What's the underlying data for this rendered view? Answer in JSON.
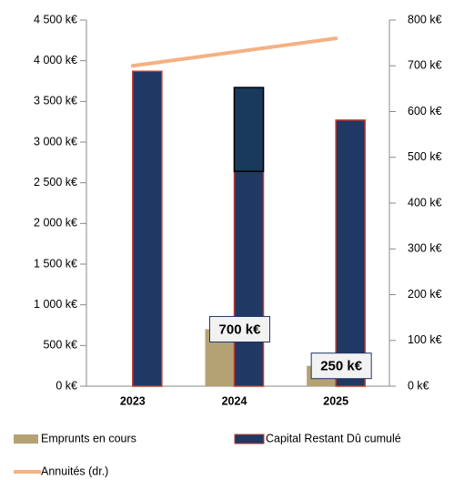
{
  "chart_data": {
    "type": "bar",
    "categories": [
      "2023",
      "2024",
      "2025"
    ],
    "series": [
      {
        "name": "Emprunts en cours",
        "color": "#b5a274",
        "values": [
          0,
          700,
          250
        ],
        "value_labels": [
          null,
          "700 k€",
          "250 k€"
        ]
      },
      {
        "name": "Capital Restant Dû cumulé",
        "color": "#1f3864",
        "border": "#c0392b",
        "values": [
          3870,
          3670,
          3270
        ]
      },
      {
        "name": "Annuités (dr.)",
        "color": "#f4b183",
        "type": "line",
        "axis": "y2",
        "values": [
          700,
          730,
          760
        ]
      }
    ],
    "highlight_range": [
      2640,
      3670
    ],
    "ylim": [
      0,
      4500
    ],
    "yticks": [
      {
        "value": 0,
        "label": "0 k€"
      },
      {
        "value": 500,
        "label": "500 k€"
      },
      {
        "value": 1000,
        "label": "1 000 k€"
      },
      {
        "value": 1500,
        "label": "1 500 k€"
      },
      {
        "value": 2000,
        "label": "2 000 k€"
      },
      {
        "value": 2500,
        "label": "2 500 k€"
      },
      {
        "value": 3000,
        "label": "3 000 k€"
      },
      {
        "value": 3500,
        "label": "3 500 k€"
      },
      {
        "value": 4000,
        "label": "4 000 k€"
      },
      {
        "value": 4500,
        "label": "4 500 k€"
      }
    ],
    "y2lim": [
      0,
      800
    ],
    "y2ticks": [
      {
        "value": 0,
        "label": "0 k€"
      },
      {
        "value": 100,
        "label": "100 k€"
      },
      {
        "value": 200,
        "label": "200 k€"
      },
      {
        "value": 300,
        "label": "300 k€"
      },
      {
        "value": 400,
        "label": "400 k€"
      },
      {
        "value": 500,
        "label": "500 k€"
      },
      {
        "value": 600,
        "label": "600 k€"
      },
      {
        "value": 700,
        "label": "700 k€"
      },
      {
        "value": 800,
        "label": "800 k€"
      }
    ]
  }
}
